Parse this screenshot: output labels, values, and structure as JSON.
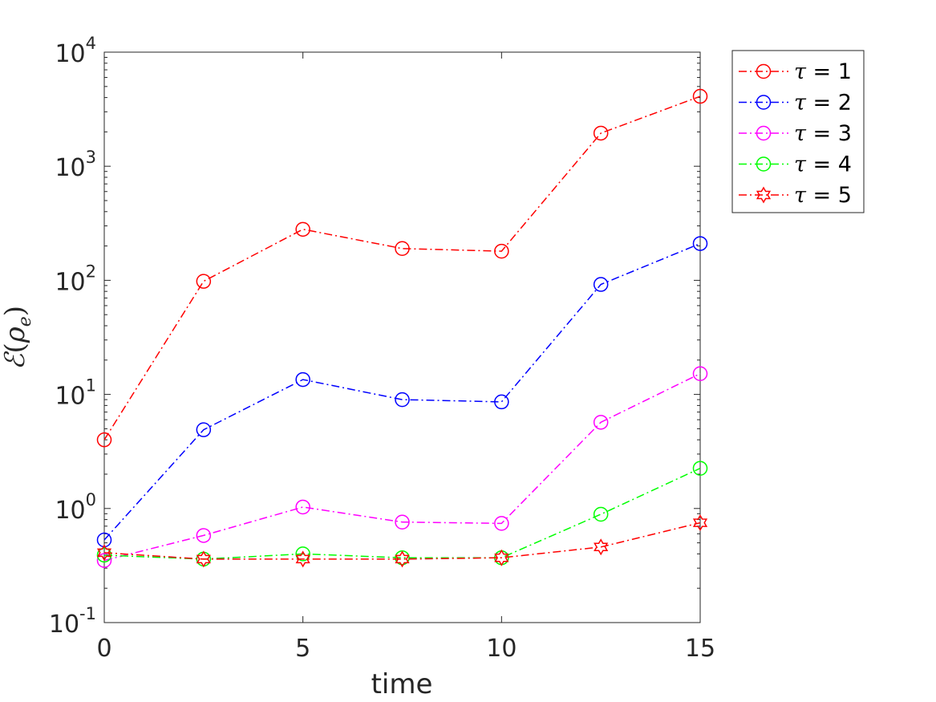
{
  "chart_data": {
    "type": "line",
    "xlabel": "time",
    "ylabel": "ℰ(ρe)",
    "ylabel_parts": {
      "script": "ℰ",
      "rho": "ρ",
      "sub": "e"
    },
    "x": [
      0,
      2.5,
      5,
      7.5,
      10,
      12.5,
      15
    ],
    "xlim": [
      0,
      15
    ],
    "xticks": [
      0,
      5,
      10,
      15
    ],
    "ylim": [
      0.1,
      10000
    ],
    "yscale": "log",
    "yticks": [
      {
        "base": "10",
        "exp": "-1",
        "value": 0.1
      },
      {
        "base": "10",
        "exp": "0",
        "value": 1
      },
      {
        "base": "10",
        "exp": "1",
        "value": 10
      },
      {
        "base": "10",
        "exp": "2",
        "value": 100
      },
      {
        "base": "10",
        "exp": "3",
        "value": 1000
      },
      {
        "base": "10",
        "exp": "4",
        "value": 10000
      }
    ],
    "grid": false,
    "legend_position": "outside top-right",
    "series": [
      {
        "name": "τ = 1",
        "symbol": "τ",
        "label_rest": " = 1",
        "color": "#ff0000",
        "marker": "circle",
        "values": [
          4.0,
          98,
          280,
          190,
          180,
          1950,
          4100
        ]
      },
      {
        "name": "τ = 2",
        "symbol": "τ",
        "label_rest": " = 2",
        "color": "#0000ff",
        "marker": "circle",
        "values": [
          0.53,
          4.9,
          13.5,
          9.0,
          8.6,
          92,
          210
        ]
      },
      {
        "name": "τ = 3",
        "symbol": "τ",
        "label_rest": " = 3",
        "color": "#ff00ff",
        "marker": "circle",
        "values": [
          0.35,
          0.58,
          1.03,
          0.76,
          0.74,
          5.7,
          15.2
        ]
      },
      {
        "name": "τ = 4",
        "symbol": "τ",
        "label_rest": " = 4",
        "color": "#00ff00",
        "marker": "circle",
        "values": [
          0.39,
          0.36,
          0.4,
          0.37,
          0.37,
          0.89,
          2.25
        ]
      },
      {
        "name": "τ = 5",
        "symbol": "τ",
        "label_rest": " = 5",
        "color": "#ff0000",
        "marker": "hexagram",
        "values": [
          0.41,
          0.36,
          0.36,
          0.36,
          0.37,
          0.46,
          0.75
        ]
      }
    ]
  }
}
